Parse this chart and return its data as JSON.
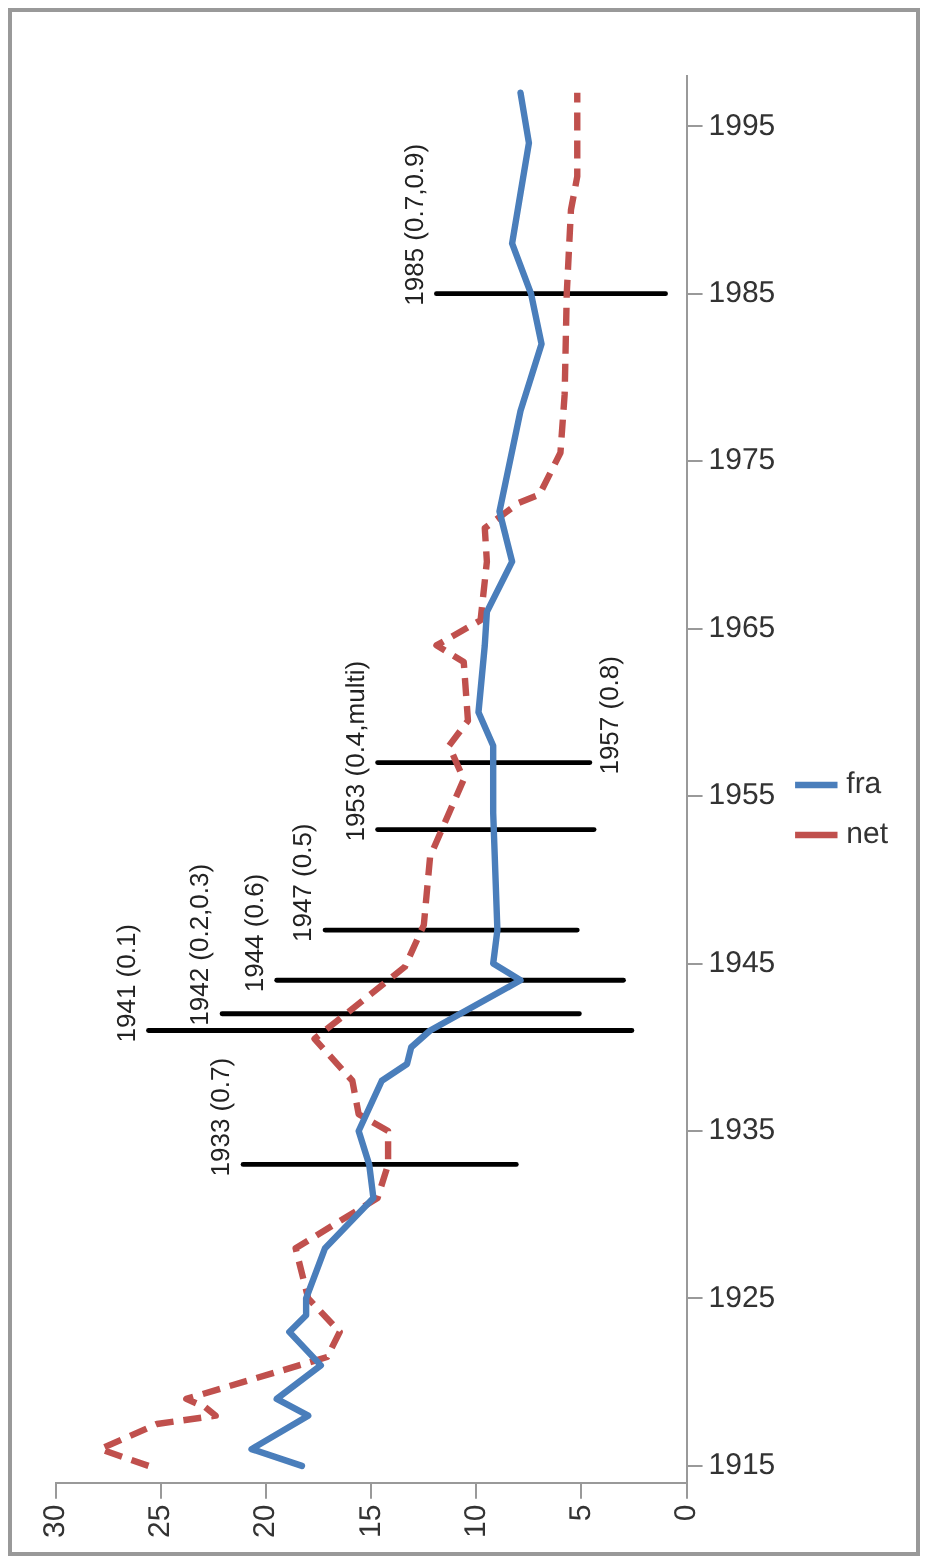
{
  "chart_data": {
    "type": "line",
    "xlim": [
      30,
      0
    ],
    "xticks": [
      30,
      25,
      20,
      15,
      10,
      5,
      0
    ],
    "ylim": [
      1914,
      1998
    ],
    "yticks": [
      1915,
      1925,
      1935,
      1945,
      1955,
      1965,
      1975,
      1985,
      1995
    ],
    "legend": "right",
    "line_style": "solid",
    "marker": "none",
    "series": [
      {
        "name": "fra",
        "color": "#4a7ebb",
        "x": [
          18.3,
          20.7,
          18.0,
          19.5,
          17.4,
          18.9,
          18.1,
          18.1,
          17.2,
          14.9,
          15.1,
          15.6,
          14.5,
          13.3,
          13.1,
          12.2,
          7.9,
          9.2,
          9.0,
          9.2,
          9.2,
          9.9,
          9.6,
          9.5,
          8.3,
          8.9,
          8.4,
          7.9,
          7.4,
          6.9,
          7.4,
          8.3,
          7.9,
          7.5,
          7.9
        ],
        "values": [
          1915,
          1916,
          1918,
          1919,
          1921,
          1923,
          1924,
          1925,
          1928,
          1931,
          1933,
          1935,
          1938,
          1939,
          1940,
          1941,
          1944,
          1945,
          1947,
          1954,
          1958,
          1960,
          1964,
          1966,
          1969,
          1972,
          1975,
          1978,
          1980,
          1982,
          1985,
          1988,
          1991,
          1994,
          1997
        ]
      },
      {
        "name": "net",
        "color": "#c0504d",
        "line_style": "dashed",
        "x": [
          25.6,
          27.9,
          25.2,
          22.4,
          22.9,
          23.8,
          17.1,
          16.5,
          18.0,
          18.6,
          14.7,
          14.2,
          14.2,
          15.6,
          15.9,
          17.7,
          16.8,
          13.4,
          12.5,
          12.2,
          10.6,
          11.3,
          10.4,
          10.6,
          11.9,
          9.8,
          9.5,
          9.6,
          8.0,
          7.0,
          6.0,
          5.8,
          5.7,
          5.5,
          5.2,
          5.2
        ],
        "values": [
          1915,
          1916,
          1917.5,
          1918,
          1918.5,
          1919,
          1921.5,
          1923,
          1925,
          1928,
          1931,
          1933,
          1935,
          1936,
          1938,
          1940.5,
          1941.4,
          1944.8,
          1947.3,
          1951.4,
          1956,
          1958,
          1959.5,
          1963,
          1964,
          1965.5,
          1969,
          1971,
          1972.5,
          1973,
          1975.5,
          1979,
          1985,
          1990,
          1992,
          1997
        ]
      },
      {
        "color": "#000000",
        "x": [
          8.1,
          21.1
        ],
        "values": [
          1933,
          1933
        ]
      },
      {
        "color": "#000000",
        "x": [
          2.6,
          25.6
        ],
        "values": [
          1941,
          1941
        ]
      },
      {
        "color": "#000000",
        "x": [
          5.1,
          22.1
        ],
        "values": [
          1942,
          1942
        ]
      },
      {
        "color": "#000000",
        "x": [
          3.0,
          19.5
        ],
        "values": [
          1944,
          1944
        ]
      },
      {
        "color": "#000000",
        "x": [
          5.2,
          17.2
        ],
        "values": [
          1947,
          1947
        ]
      },
      {
        "color": "#000000",
        "x": [
          4.4,
          14.7
        ],
        "values": [
          1953,
          1953
        ]
      },
      {
        "color": "#000000",
        "x": [
          4.6,
          14.7
        ],
        "values": [
          1957,
          1957
        ]
      },
      {
        "color": "#000000",
        "x": [
          1.0,
          11.9
        ],
        "values": [
          1985,
          1985
        ]
      }
    ],
    "annotations": [
      {
        "text": "1933 (0.7)",
        "x": 21.1,
        "y": 1933
      },
      {
        "text": "1941 (0.1)",
        "x": 25.6,
        "y": 1941
      },
      {
        "text": "1942 (0.2,0.3)",
        "x": 22.1,
        "y": 1942
      },
      {
        "text": "1944 (0.6)",
        "x": 19.5,
        "y": 1944
      },
      {
        "text": "1947 (0.5)",
        "x": 17.2,
        "y": 1947
      },
      {
        "text": "1953 (0.4,multi)",
        "x": 14.7,
        "y": 1953
      },
      {
        "text": "1957 (0.8)",
        "x": 4.6,
        "y": 1957
      },
      {
        "text": "1985 (0.7,0.9)",
        "x": 11.9,
        "y": 1985
      }
    ]
  }
}
